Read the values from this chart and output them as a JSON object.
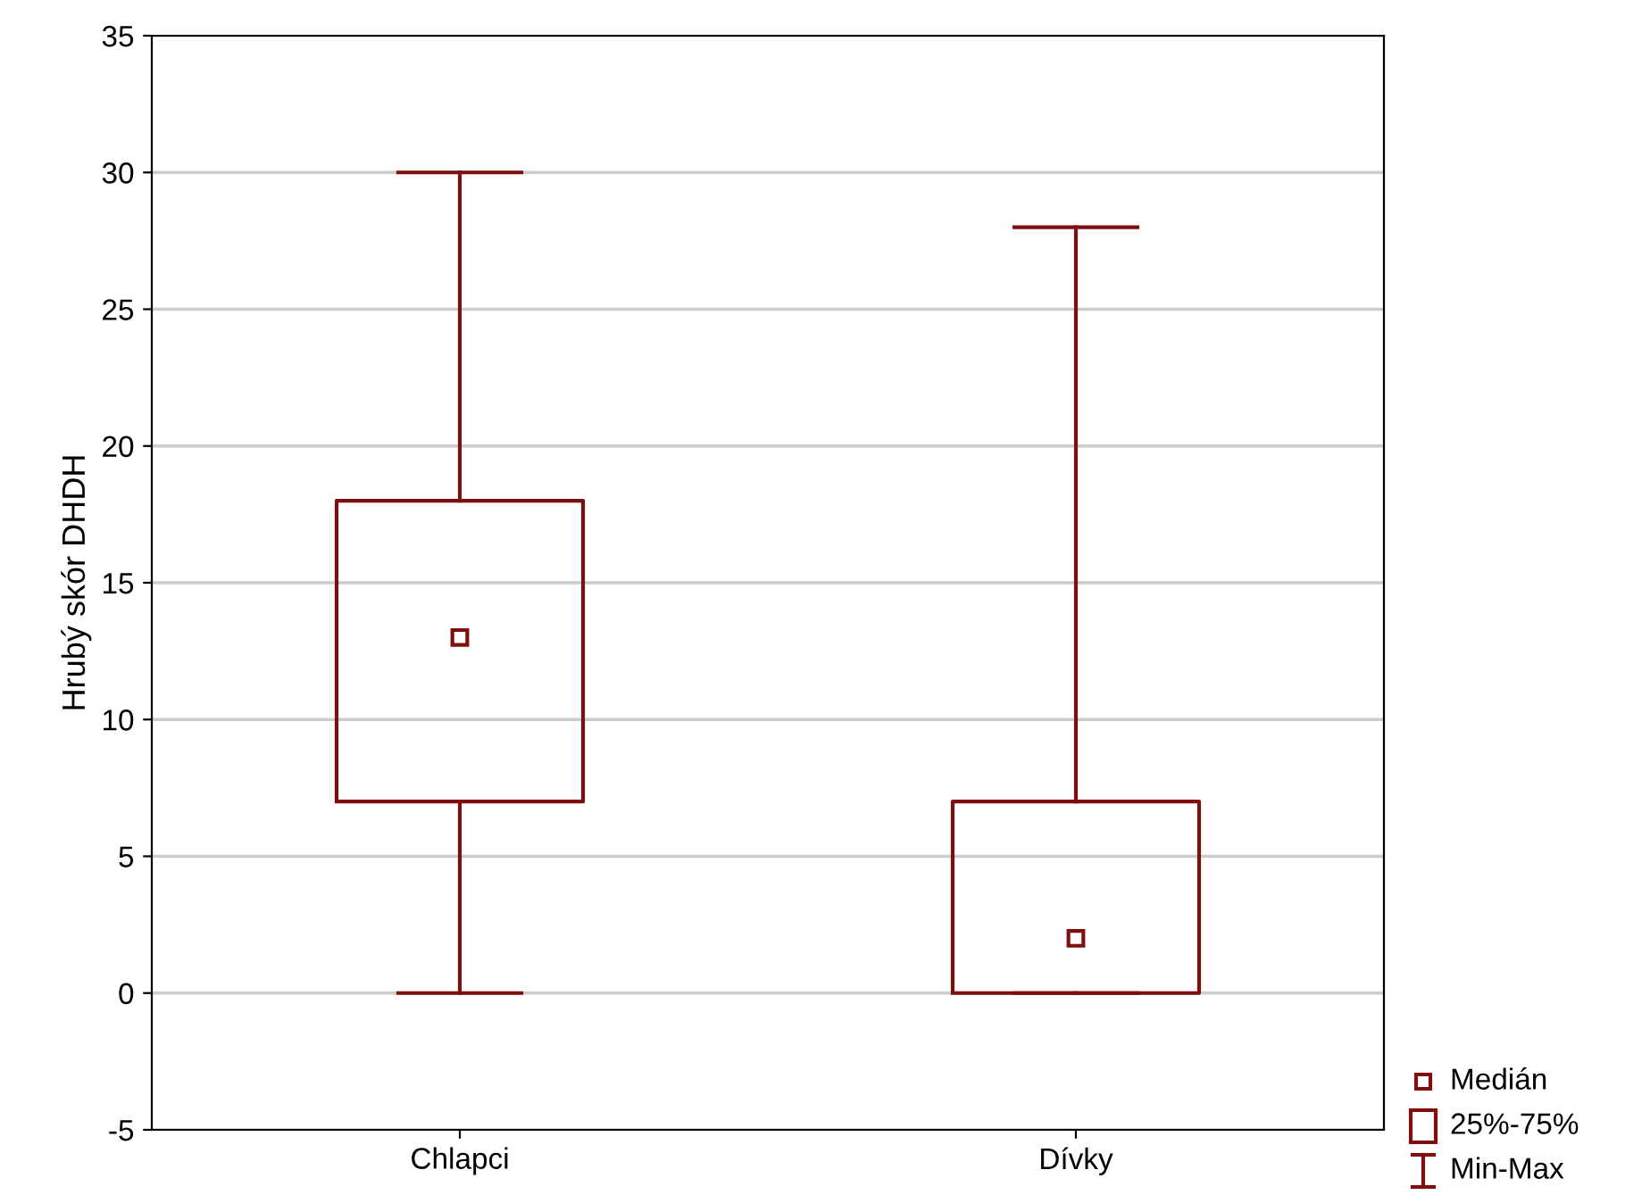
{
  "chart_data": {
    "type": "box",
    "ylabel": "Hrubý skór DHDH",
    "categories": [
      "Chlapci",
      "Dívky"
    ],
    "boxes": [
      {
        "low": 0,
        "q1": 7,
        "median": 13,
        "q3": 18,
        "high": 30
      },
      {
        "low": 0,
        "q1": 0,
        "median": 2,
        "q3": 7,
        "high": 28
      }
    ],
    "color": "#7f0f0f",
    "ylim": [
      -5,
      35
    ],
    "yticks": [
      -5,
      0,
      5,
      10,
      15,
      20,
      25,
      30,
      35
    ],
    "grid": "y",
    "annotations": [
      "Medián",
      "25%-75%",
      "Min-Max"
    ]
  }
}
